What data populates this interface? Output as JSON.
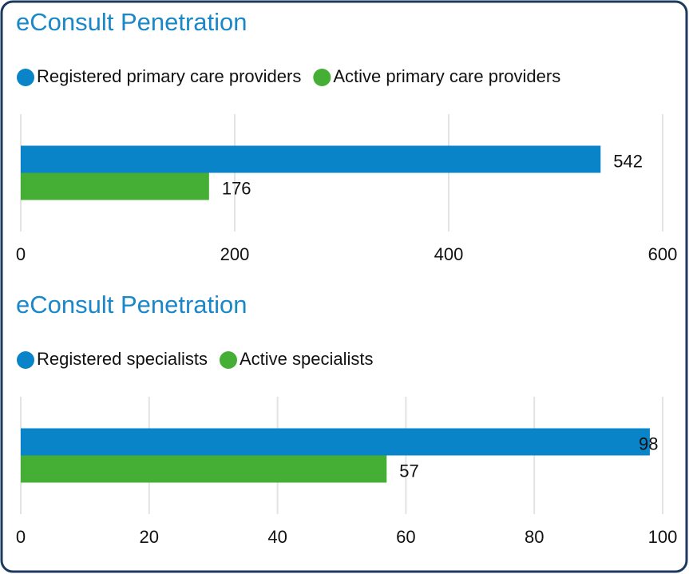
{
  "chart_data": [
    {
      "type": "hbar",
      "title": "eConsult Penetration",
      "categories": [
        null
      ],
      "series": [
        {
          "name": "Registered primary care providers",
          "color": "#0a84c8",
          "values": [
            542
          ]
        },
        {
          "name": "Active primary care providers",
          "color": "#44ae35",
          "values": [
            176
          ]
        }
      ],
      "xlim": [
        0,
        600
      ],
      "xticks": [
        0,
        200,
        400,
        600
      ],
      "grid": true
    },
    {
      "type": "hbar",
      "title": "eConsult Penetration",
      "categories": [
        null
      ],
      "series": [
        {
          "name": "Registered specialists",
          "color": "#0a84c8",
          "values": [
            98
          ]
        },
        {
          "name": "Active specialists",
          "color": "#44ae35",
          "values": [
            57
          ]
        }
      ],
      "xlim": [
        0,
        100
      ],
      "xticks": [
        0,
        20,
        40,
        60,
        80,
        100
      ],
      "grid": true
    }
  ]
}
